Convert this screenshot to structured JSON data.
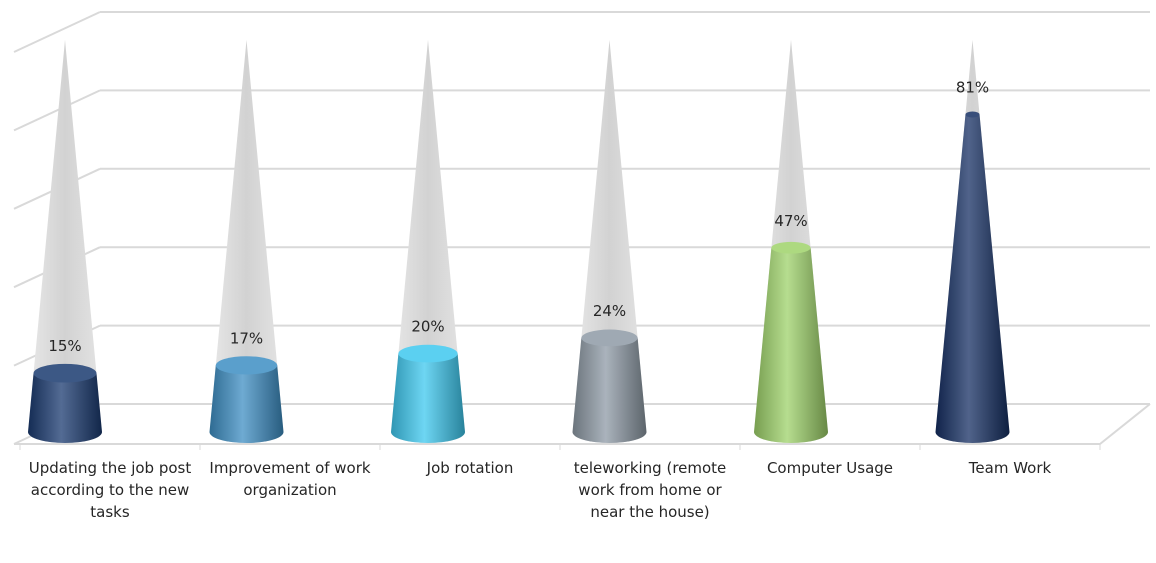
{
  "chart_data": {
    "type": "bar",
    "variant": "3d-cone",
    "categories": [
      "Updating the job post according to the new tasks",
      "Improvement of work organization",
      "Job rotation",
      "teleworking (remote work from home or near the house)",
      "Computer Usage",
      "Team Work"
    ],
    "values": [
      15,
      17,
      20,
      24,
      47,
      81
    ],
    "value_labels": [
      "15%",
      "17%",
      "20%",
      "24%",
      "47%",
      "81%"
    ],
    "ylim": [
      0,
      100
    ],
    "grid": true,
    "legend": "none",
    "title": "",
    "xlabel": "",
    "ylabel": ""
  },
  "colors": {
    "bars": [
      "#1a3a70",
      "#3d8ec3",
      "#3ec8ef",
      "#8e9aa5",
      "#9ed26a",
      "#152f63"
    ],
    "ghost": "#dcdcdc",
    "grid": "#d9d9d9",
    "text": "#262626"
  }
}
